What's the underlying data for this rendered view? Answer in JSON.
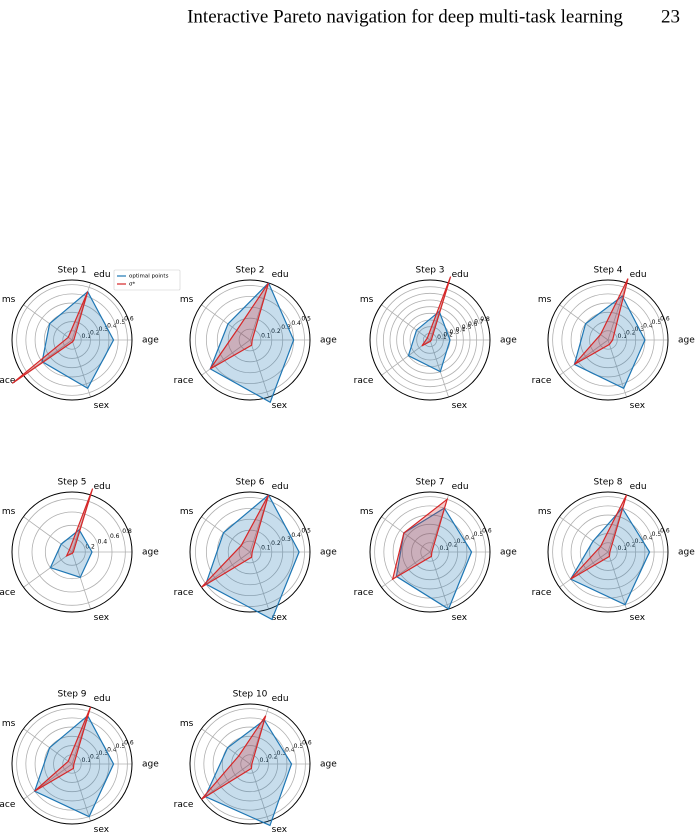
{
  "header": {
    "title": "Interactive Pareto navigation for deep multi-task learning",
    "page": "23"
  },
  "chart_data": [
    {
      "type": "radar",
      "title": "Step 1",
      "categories": [
        "age",
        "edu",
        "ms",
        "race",
        "sex"
      ],
      "rlim": [
        0,
        0.65
      ],
      "rticks": [
        0.1,
        0.2,
        0.3,
        0.4,
        0.5,
        0.6
      ],
      "legend": "upper right",
      "series": [
        {
          "name": "optimal points",
          "color": "#1f77b4",
          "values": [
            0.45,
            0.55,
            0.3,
            0.4,
            0.55
          ]
        },
        {
          "name": "σ*",
          "color": "#d62728",
          "values": [
            0.02,
            0.55,
            0.05,
            0.8,
            0.02
          ]
        }
      ]
    },
    {
      "type": "radar",
      "title": "Step 2",
      "categories": [
        "age",
        "edu",
        "ms",
        "race",
        "sex"
      ],
      "rlim": [
        0,
        0.55
      ],
      "rticks": [
        0.1,
        0.2,
        0.3,
        0.4,
        0.5
      ],
      "series": [
        {
          "color": "#1f77b4",
          "values": [
            0.4,
            0.55,
            0.25,
            0.45,
            0.6
          ]
        },
        {
          "color": "#d62728",
          "values": [
            0.02,
            0.55,
            0.15,
            0.45,
            0.05
          ]
        }
      ]
    },
    {
      "type": "radar",
      "title": "Step 3",
      "categories": [
        "age",
        "edu",
        "ms",
        "race",
        "sex"
      ],
      "rlim": [
        0,
        0.9
      ],
      "rticks": [
        0.1,
        0.2,
        0.3,
        0.4,
        0.5,
        0.6,
        0.7,
        0.8
      ],
      "series": [
        {
          "color": "#1f77b4",
          "values": [
            0.3,
            0.45,
            0.25,
            0.4,
            0.5
          ]
        },
        {
          "color": "#d62728",
          "values": [
            0.02,
            1.0,
            0.05,
            0.15,
            0.02
          ]
        }
      ]
    },
    {
      "type": "radar",
      "title": "Step 4",
      "categories": [
        "age",
        "edu",
        "ms",
        "race",
        "sex"
      ],
      "rlim": [
        0,
        0.65
      ],
      "rticks": [
        0.1,
        0.2,
        0.3,
        0.4,
        0.5,
        0.6
      ],
      "series": [
        {
          "color": "#1f77b4",
          "values": [
            0.4,
            0.5,
            0.3,
            0.45,
            0.55
          ]
        },
        {
          "color": "#d62728",
          "values": [
            0.05,
            0.7,
            0.1,
            0.45,
            0.05
          ]
        }
      ]
    },
    {
      "type": "radar",
      "title": "Step 5",
      "categories": [
        "age",
        "edu",
        "ms",
        "race",
        "sex"
      ],
      "rlim": [
        0,
        0.9
      ],
      "rticks": [
        0.2,
        0.4,
        0.6,
        0.8
      ],
      "series": [
        {
          "color": "#1f77b4",
          "values": [
            0.3,
            0.35,
            0.2,
            0.4,
            0.4
          ]
        },
        {
          "color": "#d62728",
          "values": [
            0.02,
            1.0,
            0.05,
            0.1,
            0.02
          ]
        }
      ]
    },
    {
      "type": "radar",
      "title": "Step 6",
      "categories": [
        "age",
        "edu",
        "ms",
        "race",
        "sex"
      ],
      "rlim": [
        0,
        0.55
      ],
      "rticks": [
        0.1,
        0.2,
        0.3,
        0.4,
        0.5
      ],
      "series": [
        {
          "color": "#1f77b4",
          "values": [
            0.45,
            0.55,
            0.3,
            0.5,
            0.65
          ]
        },
        {
          "color": "#d62728",
          "values": [
            0.02,
            0.55,
            0.1,
            0.55,
            0.05
          ]
        }
      ]
    },
    {
      "type": "radar",
      "title": "Step 7",
      "categories": [
        "age",
        "edu",
        "ms",
        "race",
        "sex"
      ],
      "rlim": [
        0,
        0.65
      ],
      "rticks": [
        0.1,
        0.2,
        0.3,
        0.4,
        0.5,
        0.6
      ],
      "series": [
        {
          "color": "#1f77b4",
          "values": [
            0.45,
            0.5,
            0.35,
            0.45,
            0.65
          ]
        },
        {
          "color": "#d62728",
          "values": [
            0.02,
            0.6,
            0.35,
            0.5,
            0.05
          ]
        }
      ]
    },
    {
      "type": "radar",
      "title": "Step 8",
      "categories": [
        "age",
        "edu",
        "ms",
        "race",
        "sex"
      ],
      "rlim": [
        0,
        0.65
      ],
      "rticks": [
        0.1,
        0.2,
        0.3,
        0.4,
        0.5,
        0.6
      ],
      "series": [
        {
          "color": "#1f77b4",
          "values": [
            0.45,
            0.5,
            0.2,
            0.5,
            0.6
          ]
        },
        {
          "color": "#d62728",
          "values": [
            0.02,
            0.65,
            0.1,
            0.5,
            0.05
          ]
        }
      ]
    },
    {
      "type": "radar",
      "title": "Step 9",
      "categories": [
        "age",
        "edu",
        "ms",
        "race",
        "sex"
      ],
      "rlim": [
        0,
        0.65
      ],
      "rticks": [
        0.1,
        0.2,
        0.3,
        0.4,
        0.5,
        0.6
      ],
      "series": [
        {
          "color": "#1f77b4",
          "values": [
            0.45,
            0.55,
            0.3,
            0.5,
            0.6
          ]
        },
        {
          "color": "#d62728",
          "values": [
            0.02,
            0.65,
            0.05,
            0.5,
            0.05
          ]
        }
      ]
    },
    {
      "type": "radar",
      "title": "Step 10",
      "categories": [
        "age",
        "edu",
        "ms",
        "race",
        "sex"
      ],
      "rlim": [
        0,
        0.65
      ],
      "rticks": [
        0.1,
        0.2,
        0.3,
        0.4,
        0.5,
        0.6
      ],
      "series": [
        {
          "color": "#1f77b4",
          "values": [
            0.45,
            0.5,
            0.3,
            0.6,
            0.7
          ]
        },
        {
          "color": "#d62728",
          "values": [
            0.02,
            0.55,
            0.15,
            0.65,
            0.05
          ]
        }
      ]
    }
  ]
}
